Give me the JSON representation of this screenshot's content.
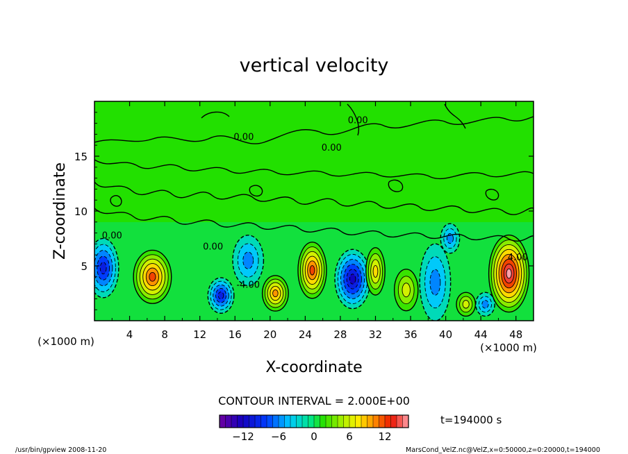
{
  "chart_data": {
    "type": "heatmap",
    "title": "vertical velocity",
    "xlabel": "X-coordinate",
    "ylabel": "Z-coordinate",
    "x_unit_label": "(×1000 m)",
    "y_unit_label": "(×1000 m)",
    "xlim": [
      0,
      50
    ],
    "ylim": [
      0,
      20
    ],
    "x_ticks": [
      4,
      8,
      12,
      16,
      20,
      24,
      28,
      32,
      36,
      40,
      44,
      48
    ],
    "y_ticks": [
      5,
      10,
      15
    ],
    "contour_interval_text": "CONTOUR INTERVAL = 2.000E+00",
    "time_label": "t=194000 s",
    "contour_labels": [
      {
        "text": "0.00",
        "x": 17.0,
        "z": 16.5
      },
      {
        "text": "0.00",
        "x": 30.0,
        "z": 18.0
      },
      {
        "text": "0.00",
        "x": 27.0,
        "z": 15.5
      },
      {
        "text": "-4.00",
        "x": 17.5,
        "z": 3.0
      },
      {
        "text": "0.00",
        "x": 2.0,
        "z": 7.5
      },
      {
        "text": "0.00",
        "x": 13.5,
        "z": 6.5
      },
      {
        "text": "4.00",
        "x": 48.2,
        "z": 5.5
      }
    ],
    "cells": [
      {
        "x": 1.0,
        "z": 4.8,
        "sx": 1.3,
        "sz": 2.0,
        "v": -9
      },
      {
        "x": 6.6,
        "z": 4.0,
        "sx": 1.6,
        "sz": 1.8,
        "v": 12
      },
      {
        "x": 14.4,
        "z": 2.3,
        "sx": 1.1,
        "sz": 1.2,
        "v": -9
      },
      {
        "x": 17.5,
        "z": 5.5,
        "sx": 1.3,
        "sz": 1.7,
        "v": -6
      },
      {
        "x": 20.6,
        "z": 2.5,
        "sx": 1.1,
        "sz": 1.2,
        "v": 10
      },
      {
        "x": 24.8,
        "z": 4.6,
        "sx": 1.2,
        "sz": 1.9,
        "v": 12
      },
      {
        "x": 29.4,
        "z": 3.8,
        "sx": 1.5,
        "sz": 2.0,
        "v": -11
      },
      {
        "x": 32.0,
        "z": 4.5,
        "sx": 0.8,
        "sz": 1.6,
        "v": 8
      },
      {
        "x": 35.5,
        "z": 2.8,
        "sx": 1.0,
        "sz": 1.4,
        "v": 6
      },
      {
        "x": 38.8,
        "z": 3.5,
        "sx": 1.3,
        "sz": 2.6,
        "v": -6
      },
      {
        "x": 40.5,
        "z": 7.5,
        "sx": 0.8,
        "sz": 1.0,
        "v": -6
      },
      {
        "x": 42.3,
        "z": 1.5,
        "sx": 0.8,
        "sz": 0.8,
        "v": 5
      },
      {
        "x": 44.5,
        "z": 1.5,
        "sx": 0.8,
        "sz": 0.8,
        "v": -6
      },
      {
        "x": 47.2,
        "z": 4.3,
        "sx": 1.7,
        "sz": 2.6,
        "v": 16
      }
    ],
    "colorbar": {
      "min": -16,
      "max": 16,
      "tick_values": [
        -12,
        -6,
        0,
        6,
        12
      ],
      "tick_labels": [
        "−12",
        "−6",
        "0",
        "6",
        "12"
      ]
    }
  },
  "footer": {
    "left": "/usr/bin/gpview  2008-11-20",
    "right": "MarsCond_VelZ.nc@VelZ,x=0:50000,z=0:20000,t=194000"
  }
}
